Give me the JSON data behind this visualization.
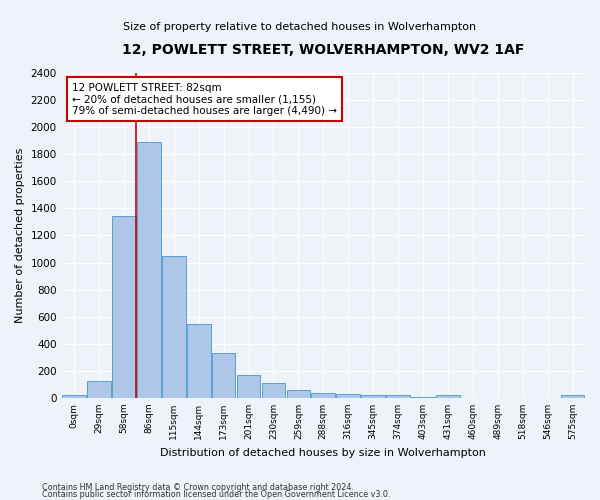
{
  "title": "12, POWLETT STREET, WOLVERHAMPTON, WV2 1AF",
  "subtitle": "Size of property relative to detached houses in Wolverhampton",
  "xlabel": "Distribution of detached houses by size in Wolverhampton",
  "ylabel": "Number of detached properties",
  "bar_labels": [
    "0sqm",
    "29sqm",
    "58sqm",
    "86sqm",
    "115sqm",
    "144sqm",
    "173sqm",
    "201sqm",
    "230sqm",
    "259sqm",
    "288sqm",
    "316sqm",
    "345sqm",
    "374sqm",
    "403sqm",
    "431sqm",
    "460sqm",
    "489sqm",
    "518sqm",
    "546sqm",
    "575sqm"
  ],
  "bar_values": [
    18,
    128,
    1340,
    1890,
    1045,
    545,
    335,
    168,
    110,
    62,
    38,
    30,
    25,
    18,
    5,
    20,
    2,
    0,
    0,
    0,
    18
  ],
  "bar_color": "#aec6e8",
  "bar_edge_color": "#5a9fd4",
  "annotation_text": "12 POWLETT STREET: 82sqm\n← 20% of detached houses are smaller (1,155)\n79% of semi-detached houses are larger (4,490) →",
  "annotation_box_color": "#ffffff",
  "annotation_box_edge_color": "#cc0000",
  "line_color": "#cc0000",
  "ylim": [
    0,
    2400
  ],
  "yticks": [
    0,
    200,
    400,
    600,
    800,
    1000,
    1200,
    1400,
    1600,
    1800,
    2000,
    2200,
    2400
  ],
  "footer1": "Contains HM Land Registry data © Crown copyright and database right 2024.",
  "footer2": "Contains public sector information licensed under the Open Government Licence v3.0.",
  "bg_color": "#eef2f9",
  "grid_color": "#ffffff"
}
